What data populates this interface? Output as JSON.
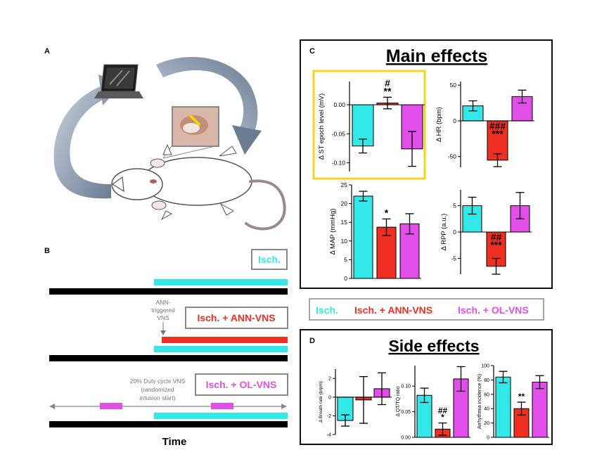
{
  "panels": {
    "A": "A",
    "B": "B",
    "C": "C",
    "D": "D"
  },
  "timeline": {
    "legend_isch": "Isch.",
    "legend_ann": "Isch. + ANN-VNS",
    "legend_ol": "Isch. + OL-VNS",
    "ann_annotation": [
      "ANN-",
      "triggered",
      "VNS"
    ],
    "ol_annotation": [
      "20% Duty cycle VNS",
      "(randomized",
      "infusion start)"
    ],
    "time_label": "Time"
  },
  "main_effects": {
    "title": "Main effects",
    "legend": {
      "isch": "Isch.",
      "ann": "Isch. + ANN-VNS",
      "ol": "Isch. + OL-VNS"
    },
    "colors": {
      "isch": "#33e8e8",
      "ann": "#ee2f22",
      "ol": "#e24ee8"
    }
  },
  "side_effects": {
    "title": "Side effects"
  },
  "chart_data": [
    {
      "id": "st",
      "type": "bar",
      "ylabel": "Δ ST  epoch level (mV)",
      "categories": [
        "Isch.",
        "Isch. + ANN-VNS",
        "Isch. + OL-VNS"
      ],
      "values": [
        -0.071,
        0.003,
        -0.076
      ],
      "errors": [
        0.012,
        0.01,
        0.03
      ],
      "ylim": [
        -0.115,
        0.04
      ],
      "ticks": [
        0.0,
        -0.05,
        -0.1
      ],
      "tick_labels": [
        "0.00",
        "-0.05",
        "-0.10"
      ],
      "annotations": [
        "",
        "#\n**",
        ""
      ]
    },
    {
      "id": "hr",
      "type": "bar",
      "ylabel": "Δ HR (bpm)",
      "categories": [
        "Isch.",
        "Isch. + ANN-VNS",
        "Isch. + OL-VNS"
      ],
      "values": [
        21,
        -55,
        34
      ],
      "errors": [
        7,
        9,
        9
      ],
      "ylim": [
        -65,
        55
      ],
      "ticks": [
        50,
        0,
        -50
      ],
      "tick_labels": [
        "50",
        "0",
        "-50"
      ],
      "annotations": [
        "",
        "###\n***",
        ""
      ]
    },
    {
      "id": "map",
      "type": "bar",
      "ylabel": "Δ MAP (mmHg)",
      "categories": [
        "Isch.",
        "Isch. + ANN-VNS",
        "Isch. + OL-VNS"
      ],
      "values": [
        22,
        13.7,
        14.6
      ],
      "errors": [
        1.3,
        2.2,
        2.7
      ],
      "ylim": [
        0,
        25
      ],
      "ticks": [
        25,
        20,
        15,
        10,
        5,
        0
      ],
      "tick_labels": [
        "25",
        "20",
        "15",
        "10",
        "5",
        "0"
      ],
      "annotations": [
        "",
        "*",
        ""
      ]
    },
    {
      "id": "rpp",
      "type": "bar",
      "ylabel": "Δ RPP (a.u.)",
      "categories": [
        "Isch.",
        "Isch. + ANN-VNS",
        "Isch. + OL-VNS"
      ],
      "values": [
        5.0,
        -6.5,
        5.0
      ],
      "errors": [
        1.6,
        1.5,
        2.5
      ],
      "ylim": [
        -8,
        8
      ],
      "ticks": [
        5,
        0,
        -5
      ],
      "tick_labels": [
        "5",
        "0",
        "-5"
      ],
      "annotations": [
        "",
        "##\n***",
        ""
      ]
    },
    {
      "id": "breath",
      "type": "bar",
      "ylabel": "Δ Breath rate (brpm)",
      "categories": [
        "Isch.",
        "Isch. + ANN-VNS",
        "Isch. + OL-VNS"
      ],
      "values": [
        -2.5,
        -0.3,
        0.9
      ],
      "errors": [
        0.6,
        2.5,
        1.7
      ],
      "ylim": [
        -4,
        3
      ],
      "ticks": [
        2,
        0,
        -2,
        -4
      ],
      "tick_labels": [
        "2",
        "0",
        "-2",
        "-4"
      ],
      "annotations": [
        "",
        "",
        ""
      ]
    },
    {
      "id": "qt",
      "type": "bar",
      "ylabel": "Δ QT/TQ ratio",
      "categories": [
        "Isch.",
        "Isch. + ANN-VNS",
        "Isch. + OL-VNS"
      ],
      "values": [
        0.082,
        0.016,
        0.114
      ],
      "errors": [
        0.014,
        0.012,
        0.024
      ],
      "ylim": [
        0,
        0.14
      ],
      "ticks": [
        0.1,
        0.05,
        0.0
      ],
      "tick_labels": [
        "0.10",
        "0.05",
        "0.00"
      ],
      "annotations": [
        "",
        "##\n*",
        ""
      ]
    },
    {
      "id": "arr",
      "type": "bar",
      "ylabel": "Arrhythmia incidence (%)",
      "categories": [
        "Isch.",
        "Isch. + ANN-VNS",
        "Isch. + OL-VNS"
      ],
      "values": [
        84,
        40,
        77
      ],
      "errors": [
        8,
        9,
        9
      ],
      "ylim": [
        0,
        100
      ],
      "ticks": [
        100,
        80,
        60,
        40,
        20,
        0
      ],
      "tick_labels": [
        "100",
        "80",
        "60",
        "40",
        "20",
        "0"
      ],
      "annotations": [
        "",
        "**",
        ""
      ]
    }
  ]
}
